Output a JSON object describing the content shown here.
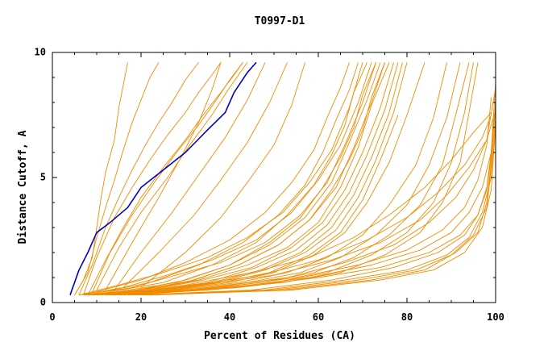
{
  "chart_data": {
    "type": "line",
    "title": "T0997-D1",
    "xlabel": "Percent of Residues (CA)",
    "ylabel": "Distance Cutoff, A",
    "xlim": [
      0,
      100
    ],
    "ylim": [
      0,
      10
    ],
    "x_ticks": [
      "0",
      "20",
      "40",
      "60",
      "80",
      "100"
    ],
    "y_ticks": [
      "0",
      "5",
      "10"
    ],
    "colors": {
      "background_series": "#f08c00",
      "highlight_series": "#0000c8"
    },
    "series": [
      {
        "role": "highlight",
        "x": [
          4,
          5,
          6,
          8,
          10,
          13,
          17,
          20,
          25,
          30,
          35,
          39,
          41,
          44,
          46
        ],
        "y": [
          0.3,
          0.8,
          1.3,
          2.0,
          2.8,
          3.2,
          3.8,
          4.6,
          5.3,
          6.0,
          6.9,
          7.6,
          8.4,
          9.2,
          9.6
        ]
      },
      {
        "x": [
          5,
          7,
          9,
          10,
          11,
          12,
          14,
          15,
          16,
          17
        ],
        "y": [
          0.3,
          0.9,
          1.8,
          3.0,
          4.2,
          5.2,
          6.5,
          7.8,
          8.7,
          9.6
        ]
      },
      {
        "x": [
          5,
          8,
          10,
          12,
          14,
          16,
          18,
          20,
          22,
          24
        ],
        "y": [
          0.3,
          1.2,
          2.6,
          3.8,
          4.9,
          6.1,
          7.2,
          8.1,
          9.0,
          9.6
        ]
      },
      {
        "x": [
          6,
          9,
          12,
          15,
          18,
          21,
          24,
          27,
          30,
          33
        ],
        "y": [
          0.3,
          1.5,
          3.0,
          4.2,
          5.3,
          6.3,
          7.2,
          8.0,
          8.9,
          9.6
        ]
      },
      {
        "x": [
          7,
          10,
          14,
          18,
          22,
          26,
          30,
          33,
          36,
          38
        ],
        "y": [
          0.3,
          1.8,
          3.4,
          4.6,
          5.7,
          6.7,
          7.6,
          8.4,
          9.1,
          9.6
        ]
      },
      {
        "x": [
          8,
          12,
          16,
          20,
          25,
          30,
          34,
          38,
          41,
          43
        ],
        "y": [
          0.3,
          1.7,
          3.0,
          4.2,
          5.4,
          6.5,
          7.5,
          8.4,
          9.1,
          9.6
        ]
      },
      {
        "x": [
          9,
          13,
          18,
          23,
          28,
          33,
          37,
          40,
          43
        ],
        "y": [
          0.4,
          2.0,
          3.5,
          4.8,
          6.0,
          7.1,
          8.1,
          8.9,
          9.6
        ]
      },
      {
        "x": [
          10,
          15,
          20,
          26,
          31,
          36,
          40,
          44
        ],
        "y": [
          0.5,
          2.2,
          3.6,
          5.0,
          6.3,
          7.5,
          8.6,
          9.6
        ]
      },
      {
        "x": [
          12,
          18,
          24,
          29,
          33,
          36,
          38
        ],
        "y": [
          0.5,
          2.4,
          4.2,
          5.8,
          7.2,
          8.5,
          9.6
        ]
      },
      {
        "x": [
          14,
          20,
          27,
          33,
          39,
          44,
          48
        ],
        "y": [
          0.5,
          2.0,
          3.6,
          5.1,
          6.6,
          8.1,
          9.6
        ]
      },
      {
        "x": [
          16,
          24,
          32,
          38,
          44,
          49,
          53
        ],
        "y": [
          0.6,
          2.0,
          3.5,
          4.9,
          6.4,
          8.0,
          9.6
        ]
      },
      {
        "x": [
          20,
          30,
          38,
          44,
          50,
          54,
          57
        ],
        "y": [
          0.6,
          2.0,
          3.4,
          4.8,
          6.3,
          7.9,
          9.6
        ]
      },
      {
        "x": [
          6,
          15,
          25,
          35,
          44,
          52,
          58,
          63,
          67,
          70
        ],
        "y": [
          0.3,
          0.7,
          1.2,
          1.8,
          2.6,
          3.6,
          4.8,
          6.1,
          7.8,
          9.6
        ]
      },
      {
        "x": [
          6,
          16,
          26,
          36,
          46,
          54,
          60,
          65,
          69,
          72
        ],
        "y": [
          0.3,
          0.6,
          1.1,
          1.7,
          2.5,
          3.6,
          4.9,
          6.3,
          8.0,
          9.6
        ]
      },
      {
        "x": [
          7,
          18,
          28,
          38,
          48,
          56,
          62,
          66,
          70,
          73
        ],
        "y": [
          0.3,
          0.6,
          1.1,
          1.6,
          2.4,
          3.5,
          4.8,
          6.3,
          8.0,
          9.6
        ]
      },
      {
        "x": [
          7,
          19,
          30,
          40,
          49,
          57,
          63,
          67,
          71,
          74
        ],
        "y": [
          0.3,
          0.5,
          0.9,
          1.5,
          2.3,
          3.4,
          4.8,
          6.4,
          8.1,
          9.6
        ]
      },
      {
        "x": [
          8,
          20,
          32,
          42,
          51,
          58,
          64,
          68,
          72,
          75
        ],
        "y": [
          0.3,
          0.5,
          0.9,
          1.5,
          2.3,
          3.3,
          4.6,
          6.2,
          8.0,
          9.6
        ]
      },
      {
        "x": [
          8,
          21,
          33,
          44,
          53,
          60,
          65,
          69,
          72,
          76
        ],
        "y": [
          0.3,
          0.5,
          0.9,
          1.5,
          2.2,
          3.2,
          4.6,
          6.2,
          7.9,
          9.6
        ]
      },
      {
        "x": [
          9,
          22,
          34,
          45,
          54,
          61,
          66,
          70,
          74,
          77
        ],
        "y": [
          0.3,
          0.5,
          0.9,
          1.4,
          2.2,
          3.2,
          4.5,
          6.0,
          7.8,
          9.6
        ]
      },
      {
        "x": [
          9,
          23,
          35,
          46,
          55,
          62,
          67,
          71,
          75,
          78
        ],
        "y": [
          0.3,
          0.5,
          0.8,
          1.4,
          2.1,
          3.1,
          4.4,
          5.9,
          7.7,
          9.6
        ]
      },
      {
        "x": [
          10,
          24,
          36,
          47,
          56,
          63,
          68,
          72,
          76,
          79
        ],
        "y": [
          0.3,
          0.5,
          0.8,
          1.3,
          2.0,
          3.0,
          4.3,
          5.8,
          7.6,
          9.6
        ]
      },
      {
        "x": [
          10,
          25,
          37,
          48,
          57,
          64,
          69,
          73,
          77,
          80
        ],
        "y": [
          0.3,
          0.5,
          0.8,
          1.3,
          2.0,
          2.9,
          4.2,
          5.7,
          7.6,
          9.6
        ]
      },
      {
        "x": [
          11,
          26,
          38,
          49,
          58,
          65,
          70,
          74,
          78
        ],
        "y": [
          0.3,
          0.5,
          0.8,
          1.2,
          1.9,
          2.8,
          4.1,
          5.7,
          7.5
        ]
      },
      {
        "x": [
          12,
          27,
          40,
          50,
          59,
          66,
          71,
          76,
          80,
          84
        ],
        "y": [
          0.3,
          0.5,
          0.8,
          1.2,
          1.9,
          2.8,
          4.0,
          5.6,
          7.5,
          9.6
        ]
      },
      {
        "x": [
          12,
          28,
          42,
          53,
          62,
          70,
          76,
          82,
          86,
          89
        ],
        "y": [
          0.3,
          0.5,
          0.8,
          1.2,
          1.8,
          2.7,
          3.9,
          5.5,
          7.4,
          9.6
        ]
      },
      {
        "x": [
          13,
          30,
          44,
          56,
          65,
          73,
          80,
          85,
          89,
          92
        ],
        "y": [
          0.3,
          0.5,
          0.8,
          1.2,
          1.8,
          2.7,
          3.9,
          5.5,
          7.4,
          9.6
        ]
      },
      {
        "x": [
          13,
          32,
          47,
          59,
          68,
          76,
          83,
          88,
          91,
          94
        ],
        "y": [
          0.3,
          0.5,
          0.8,
          1.2,
          1.8,
          2.7,
          3.9,
          5.5,
          7.5,
          9.6
        ]
      },
      {
        "x": [
          14,
          34,
          50,
          62,
          72,
          80,
          86,
          90,
          93,
          95
        ],
        "y": [
          0.3,
          0.5,
          0.8,
          1.2,
          1.9,
          2.8,
          4.0,
          5.6,
          7.6,
          9.6
        ]
      },
      {
        "x": [
          15,
          35,
          52,
          65,
          75,
          83,
          88,
          92,
          94,
          96
        ],
        "y": [
          0.3,
          0.5,
          0.8,
          1.2,
          1.9,
          2.8,
          4.0,
          5.6,
          7.6,
          9.6
        ]
      },
      {
        "x": [
          15,
          30,
          45,
          58,
          68,
          76,
          84,
          90,
          95,
          99
        ],
        "y": [
          0.3,
          0.7,
          1.2,
          1.8,
          2.6,
          3.5,
          4.6,
          5.7,
          6.8,
          7.6
        ]
      },
      {
        "x": [
          16,
          32,
          47,
          60,
          71,
          80,
          87,
          93,
          97,
          99
        ],
        "y": [
          0.3,
          0.7,
          1.1,
          1.7,
          2.5,
          3.4,
          4.4,
          5.5,
          6.6,
          7.5
        ]
      },
      {
        "x": [
          16,
          34,
          50,
          63,
          74,
          83,
          89,
          94,
          98,
          100
        ],
        "y": [
          0.3,
          0.7,
          1.1,
          1.7,
          2.4,
          3.3,
          4.3,
          5.4,
          6.5,
          7.7
        ]
      },
      {
        "x": [
          17,
          36,
          53,
          66,
          77,
          85,
          91,
          95,
          98,
          100
        ],
        "y": [
          0.3,
          0.6,
          1.0,
          1.6,
          2.3,
          3.2,
          4.2,
          5.3,
          6.5,
          8.6
        ]
      },
      {
        "x": [
          17,
          38,
          55,
          69,
          80,
          88,
          93,
          96,
          98,
          99
        ],
        "y": [
          0.3,
          0.6,
          1.0,
          1.5,
          2.1,
          2.9,
          3.8,
          4.9,
          6.3,
          8.2
        ]
      },
      {
        "x": [
          18,
          40,
          58,
          72,
          83,
          90,
          94,
          97,
          99,
          100
        ],
        "y": [
          0.3,
          0.6,
          1.0,
          1.5,
          2.1,
          2.8,
          3.6,
          4.6,
          6.0,
          8.0
        ]
      },
      {
        "x": [
          18,
          42,
          60,
          74,
          85,
          92,
          96,
          98,
          99,
          100
        ],
        "y": [
          0.3,
          0.6,
          1.0,
          1.4,
          2.0,
          2.7,
          3.5,
          4.5,
          5.8,
          7.8
        ]
      },
      {
        "x": [
          19,
          45,
          63,
          77,
          87,
          93,
          96,
          98,
          99,
          100
        ],
        "y": [
          0.3,
          0.5,
          0.9,
          1.4,
          2.0,
          2.7,
          3.5,
          4.6,
          6.0,
          8.8
        ]
      },
      {
        "x": [
          20,
          48,
          66,
          80,
          89,
          94,
          97,
          99,
          100
        ],
        "y": [
          0.3,
          0.5,
          0.9,
          1.3,
          1.9,
          2.6,
          3.6,
          5.0,
          7.0
        ]
      },
      {
        "x": [
          21,
          50,
          69,
          82,
          90,
          95,
          98,
          99,
          100
        ],
        "y": [
          0.3,
          0.5,
          0.9,
          1.3,
          1.9,
          2.7,
          3.8,
          5.4,
          7.4
        ]
      },
      {
        "x": [
          22,
          52,
          72,
          84,
          91,
          96,
          98,
          99,
          100
        ],
        "y": [
          0.3,
          0.5,
          0.9,
          1.3,
          2.0,
          2.8,
          4.0,
          5.6,
          8.1
        ]
      },
      {
        "x": [
          22,
          54,
          74,
          86,
          93,
          97,
          99,
          100
        ],
        "y": [
          0.3,
          0.5,
          0.9,
          1.3,
          2.0,
          3.0,
          4.5,
          7.1
        ]
      },
      {
        "x": [
          7,
          20,
          30,
          40,
          48,
          54,
          59,
          62,
          65,
          67
        ],
        "y": [
          0.3,
          0.9,
          1.6,
          2.5,
          3.6,
          4.8,
          6.1,
          7.4,
          8.6,
          9.6
        ]
      },
      {
        "x": [
          8,
          22,
          33,
          43,
          51,
          57,
          61,
          64,
          67,
          69
        ],
        "y": [
          0.3,
          0.8,
          1.5,
          2.4,
          3.5,
          4.7,
          6.0,
          7.3,
          8.5,
          9.6
        ]
      },
      {
        "x": [
          9,
          25,
          36,
          46,
          53,
          59,
          63,
          66,
          68,
          71
        ],
        "y": [
          0.3,
          0.8,
          1.5,
          2.4,
          3.5,
          4.7,
          5.9,
          7.1,
          8.4,
          9.6
        ]
      },
      {
        "x": [
          10,
          28,
          40,
          49,
          56,
          61,
          65,
          68,
          70,
          73
        ],
        "y": [
          0.3,
          0.8,
          1.5,
          2.4,
          3.4,
          4.6,
          5.8,
          7.0,
          8.3,
          9.6
        ]
      },
      {
        "x": [
          11,
          30,
          42,
          51,
          58,
          63,
          67,
          70,
          72,
          75
        ],
        "y": [
          0.3,
          0.8,
          1.5,
          2.3,
          3.3,
          4.5,
          5.7,
          6.9,
          8.2,
          9.6
        ]
      }
    ]
  }
}
